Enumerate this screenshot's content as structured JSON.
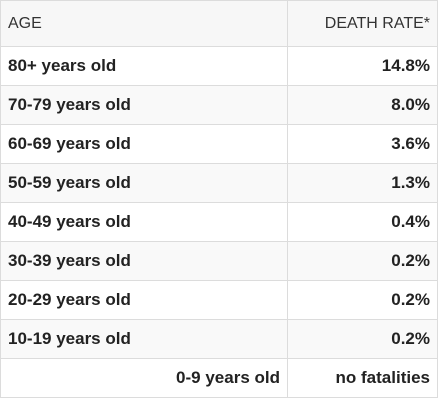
{
  "table": {
    "headers": {
      "age": "AGE",
      "rate": "DEATH RATE*"
    },
    "rows": [
      {
        "age": "80+ years old",
        "rate": "14.8%"
      },
      {
        "age": "70-79 years old",
        "rate": "8.0%"
      },
      {
        "age": "60-69 years old",
        "rate": "3.6%"
      },
      {
        "age": "50-59 years old",
        "rate": "1.3%"
      },
      {
        "age": "40-49 years old",
        "rate": "0.4%"
      },
      {
        "age": "30-39 years old",
        "rate": "0.2%"
      },
      {
        "age": "20-29 years old",
        "rate": "0.2%"
      },
      {
        "age": "10-19 years old",
        "rate": "0.2%"
      },
      {
        "age": "0-9 years old",
        "rate": "no fatalities"
      }
    ]
  },
  "colors": {
    "border": "#dcdcdc",
    "header_bg": "#f7f7f7",
    "text": "#222222"
  }
}
